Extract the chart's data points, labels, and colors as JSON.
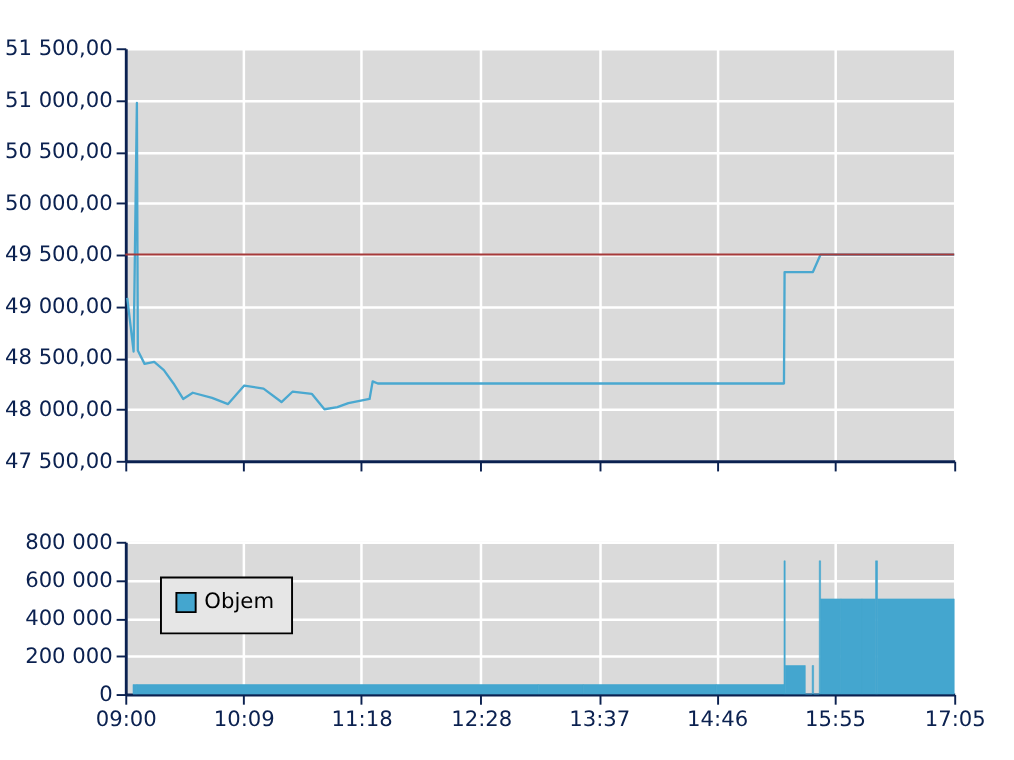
{
  "chart_data": [
    {
      "type": "line",
      "x": [
        9.019,
        9.081,
        9.113,
        9.122,
        9.188,
        9.282,
        9.376,
        9.47,
        9.564,
        9.658,
        9.846,
        10.002,
        10.16,
        10.348,
        10.523,
        10.63,
        10.818,
        10.942,
        11.068,
        11.175,
        11.382,
        11.412,
        11.462,
        15.423,
        15.429,
        15.705,
        15.78,
        17.083
      ],
      "series": [
        {
          "color": "#4aa8d0",
          "values": [
            49080,
            48560,
            50970,
            48570,
            48440,
            48460,
            48380,
            48250,
            48100,
            48160,
            48110,
            48050,
            48230,
            48200,
            48070,
            48170,
            48150,
            48000,
            48020,
            48060,
            48100,
            48270,
            48250,
            48250,
            49330,
            49330,
            49500,
            49500
          ]
        }
      ],
      "xlim": [
        9.0,
        17.0833
      ],
      "xticks": [
        {
          "value": 9.0,
          "label": null
        },
        {
          "value": 10.15,
          "label": null
        },
        {
          "value": 11.3,
          "label": null
        },
        {
          "value": 12.4667,
          "label": null
        },
        {
          "value": 13.6167,
          "label": null
        },
        {
          "value": 14.7667,
          "label": null
        },
        {
          "value": 15.9167,
          "label": null
        },
        {
          "value": 17.0833,
          "label": null
        }
      ],
      "ylim": [
        47500,
        51500
      ],
      "yticks": [
        {
          "value": 47500,
          "label": "47 500,00"
        },
        {
          "value": 48000,
          "label": "48 000,00"
        },
        {
          "value": 48500,
          "label": "48 500,00"
        },
        {
          "value": 49000,
          "label": "49 000,00"
        },
        {
          "value": 49500,
          "label": "49 500,00"
        },
        {
          "value": 50000,
          "label": "50 000,00"
        },
        {
          "value": 50500,
          "label": "50 500,00"
        },
        {
          "value": 51000,
          "label": "51 000,00"
        },
        {
          "value": 51500,
          "label": "51 500,00"
        }
      ],
      "ref_lines": [
        {
          "axis": "y",
          "value": 49500,
          "color": "#a63a3a"
        }
      ],
      "grid": true,
      "tick_labels": "y",
      "legend": false
    },
    {
      "type": "histogram",
      "bins": [
        9.075,
        9.113,
        13.028,
        13.468,
        14.765,
        15.423,
        15.435,
        15.631,
        15.698,
        15.712,
        15.767,
        15.78,
        15.978,
        16.184,
        16.316,
        16.335,
        17.0833
      ],
      "series": [
        {
          "name": "Objem",
          "color": "#44a6cf",
          "values": [
            50000,
            50000,
            50000,
            50000,
            50000,
            700000,
            150000,
            0,
            150000,
            0,
            700000,
            500000,
            500000,
            500000,
            700000,
            500000
          ]
        }
      ],
      "xlim": [
        9.0,
        17.0833
      ],
      "xticks": [
        {
          "value": 9.0,
          "label": "09:00"
        },
        {
          "value": 10.15,
          "label": "10:09"
        },
        {
          "value": 11.3,
          "label": "11:18"
        },
        {
          "value": 12.4667,
          "label": "12:28"
        },
        {
          "value": 13.6167,
          "label": "13:37"
        },
        {
          "value": 14.7667,
          "label": "14:46"
        },
        {
          "value": 15.9167,
          "label": "15:55"
        },
        {
          "value": 17.0833,
          "label": "17:05"
        }
      ],
      "ylim": [
        0,
        800000
      ],
      "yticks": [
        0,
        {
          "value": 200000,
          "label": "200 000"
        },
        {
          "value": 400000,
          "label": "400 000"
        },
        {
          "value": 600000,
          "label": "600 000"
        },
        {
          "value": 800000,
          "label": "800 000"
        }
      ],
      "grid": true,
      "legend": "top left"
    }
  ]
}
